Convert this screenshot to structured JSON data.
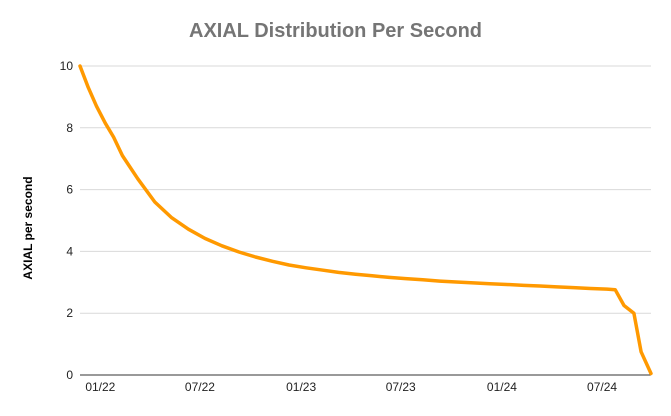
{
  "chart_data": {
    "type": "line",
    "title": "AXIAL Distribution Per Second",
    "xlabel": "",
    "ylabel": "AXIAL per second",
    "ylim": [
      0,
      10
    ],
    "yticks": [
      0,
      2,
      4,
      6,
      8,
      10
    ],
    "xticks": [
      "01/22",
      "07/22",
      "01/23",
      "07/23",
      "01/24",
      "07/24"
    ],
    "grid": "horizontal",
    "legend": "none",
    "line_color": "#FF9900",
    "gridline_color": "#D9D9D9",
    "series": [
      {
        "x": [
          "2021-11-25",
          "2021-12-10",
          "2021-12-25",
          "2022-01-10",
          "2022-01-25",
          "2022-02-10",
          "2022-03-10",
          "2022-04-10",
          "2022-05-10",
          "2022-06-10",
          "2022-07-10",
          "2022-08-10",
          "2022-09-10",
          "2022-10-10",
          "2022-11-10",
          "2022-12-10",
          "2023-01-10",
          "2023-02-10",
          "2023-03-10",
          "2023-04-10",
          "2023-05-10",
          "2023-06-10",
          "2023-07-10",
          "2023-08-10",
          "2023-09-10",
          "2023-10-10",
          "2023-11-10",
          "2023-12-10",
          "2024-01-10",
          "2024-02-10",
          "2024-03-10",
          "2024-04-10",
          "2024-05-10",
          "2024-06-10",
          "2024-07-10",
          "2024-07-25",
          "2024-08-10",
          "2024-08-28",
          "2024-09-10",
          "2024-09-28"
        ],
        "values": [
          10.0,
          9.3,
          8.7,
          8.15,
          7.7,
          7.1,
          6.35,
          5.6,
          5.1,
          4.72,
          4.42,
          4.18,
          3.98,
          3.82,
          3.68,
          3.56,
          3.47,
          3.39,
          3.32,
          3.26,
          3.21,
          3.16,
          3.12,
          3.08,
          3.04,
          3.01,
          2.98,
          2.95,
          2.93,
          2.9,
          2.88,
          2.85,
          2.83,
          2.8,
          2.78,
          2.76,
          2.25,
          2.0,
          0.75,
          0.05
        ]
      }
    ]
  }
}
